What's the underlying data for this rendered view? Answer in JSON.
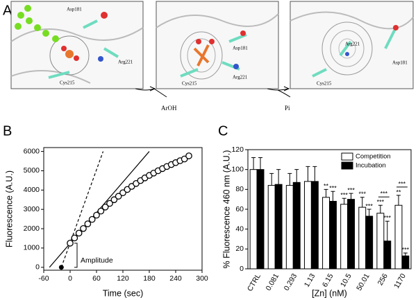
{
  "panel_labels": [
    "A",
    "B",
    "C"
  ],
  "panel_a": {
    "frames": [
      {
        "labels": [
          "Asp181",
          "Arg221",
          "Cys215"
        ]
      },
      {
        "labels": [
          "Asp181",
          "Arg221",
          "Cys215"
        ]
      },
      {
        "labels": [
          "Arg221",
          "Asp181",
          "Cys215"
        ]
      }
    ],
    "products": [
      "ArOH",
      "Pi"
    ]
  },
  "chart_data": [
    {
      "type": "scatter",
      "xlabel": "Time (sec)",
      "ylabel": "Fluorescence (A.U.)",
      "x": [
        0,
        10,
        20,
        30,
        40,
        50,
        60,
        70,
        80,
        90,
        100,
        110,
        120,
        130,
        140,
        150,
        160,
        170,
        180,
        190,
        200,
        210,
        220,
        230,
        240,
        250,
        260,
        270
      ],
      "values": [
        1250,
        1520,
        1770,
        2010,
        2250,
        2480,
        2700,
        2910,
        3120,
        3310,
        3500,
        3680,
        3860,
        4030,
        4190,
        4340,
        4490,
        4630,
        4760,
        4880,
        5000,
        5110,
        5220,
        5320,
        5420,
        5520,
        5610,
        5770
      ],
      "marker_color": "#000000",
      "fit_lines": [
        {
          "style": "solid",
          "x": [
            -47,
            180
          ],
          "values": [
            0,
            6000
          ]
        },
        {
          "style": "dashed",
          "x": [
            -20,
            75
          ],
          "values": [
            0,
            6000
          ]
        }
      ],
      "initial_point": {
        "x": -20,
        "value": 0
      },
      "amplitude": {
        "label": "Amplitude",
        "range": [
          0,
          1250
        ]
      },
      "xlim": [
        -60,
        300
      ],
      "xticks": [
        -60,
        0,
        60,
        120,
        180,
        240,
        300
      ],
      "ylim": [
        -150,
        6200
      ],
      "yticks": [
        0,
        1000,
        2000,
        3000,
        4000,
        5000,
        6000
      ]
    },
    {
      "type": "bar",
      "xlabel": "[Zn] (nM)",
      "ylabel": "% Fluorescence 460 nm (A.U.)",
      "categories": [
        "CTRL",
        "0.081",
        "0.293",
        "1.13",
        "6.15",
        "10.5",
        "50.01",
        "256",
        "1170"
      ],
      "series": [
        {
          "name": "Competition",
          "color": "#ffffff",
          "values": [
            100,
            84,
            84,
            88,
            72,
            65,
            62,
            56,
            64
          ],
          "errors": [
            12,
            12,
            12,
            15,
            8,
            6,
            10,
            8,
            10
          ],
          "sig_labels": [
            null,
            null,
            null,
            null,
            "**",
            "***",
            "***",
            "***",
            "**"
          ]
        },
        {
          "name": "Incubation",
          "color": "#000000",
          "values": [
            100,
            85,
            87,
            88,
            68,
            70,
            53,
            28,
            13
          ],
          "errors": [
            12,
            15,
            13,
            15,
            10,
            6,
            7,
            20,
            3
          ],
          "sig_labels": [
            null,
            null,
            null,
            null,
            "***",
            "***",
            "***",
            "***",
            "***"
          ]
        }
      ],
      "bracket_labels": [
        null,
        null,
        null,
        null,
        null,
        null,
        null,
        "***",
        "***"
      ],
      "legend": "upper right",
      "ylim": [
        0,
        120
      ],
      "yticks": [
        0,
        20,
        40,
        60,
        80,
        100,
        120
      ]
    }
  ]
}
